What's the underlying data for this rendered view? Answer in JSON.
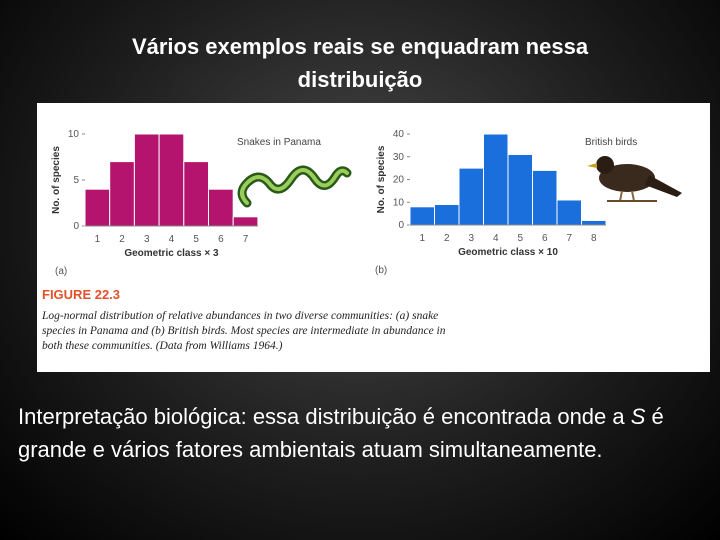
{
  "slide_title": [
    "Vários exemplos reais se enquadram nessa",
    "distribuição"
  ],
  "chart_data": [
    {
      "type": "bar",
      "title": "Snakes in Panama",
      "panel_label": "(a)",
      "xlabel": "Geometric class × 3",
      "ylabel": "No. of species",
      "categories": [
        "1",
        "2",
        "3",
        "4",
        "5",
        "6",
        "7"
      ],
      "values": [
        4,
        7,
        10,
        10,
        7,
        4,
        1
      ],
      "color": "#b5146e",
      "ylim": [
        0,
        10
      ],
      "yticks": [
        0,
        5,
        10
      ]
    },
    {
      "type": "bar",
      "title": "British birds",
      "panel_label": "(b)",
      "xlabel": "Geometric class × 10",
      "ylabel": "No. of species",
      "categories": [
        "1",
        "2",
        "3",
        "4",
        "5",
        "6",
        "7",
        "8"
      ],
      "values": [
        8,
        9,
        25,
        40,
        31,
        24,
        11,
        2
      ],
      "color": "#1a6fdd",
      "ylim": [
        0,
        40
      ],
      "yticks": [
        0,
        10,
        20,
        30,
        40
      ]
    }
  ],
  "figure_label": "FIGURE 22.3",
  "caption": [
    "Log-normal distribution of relative abundances in two diverse communities: (a) snake",
    "species in Panama and (b) British birds. Most species are intermediate in abundance in",
    "both these communities. (Data from Williams 1964.)"
  ],
  "body": [
    "Interpretação biológica: essa distribuição é encontrada onde a ",
    "S",
    " é grande e vários fatores ambientais atuam simultaneamente."
  ]
}
